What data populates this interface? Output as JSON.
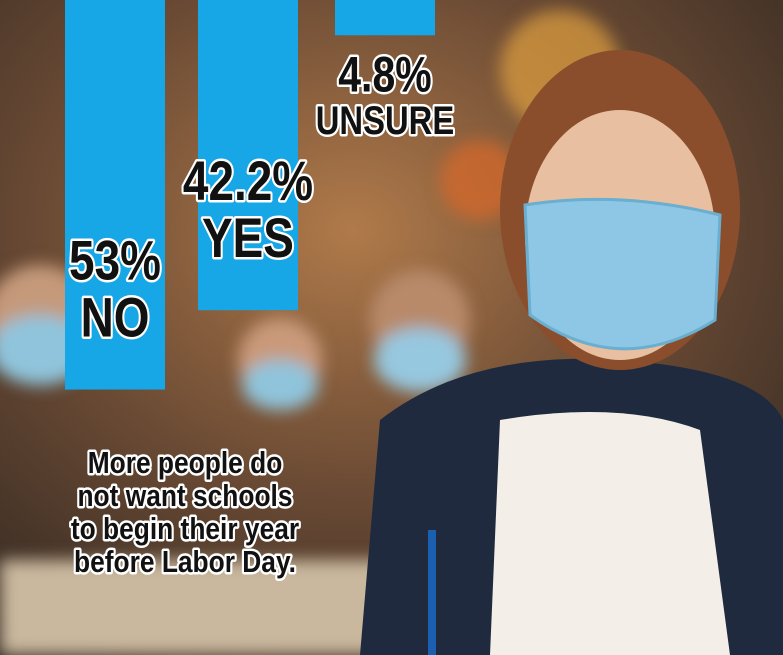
{
  "chart_data": {
    "type": "bar",
    "categories": [
      "NO",
      "YES",
      "UNSURE"
    ],
    "values": [
      53,
      42.2,
      4.8
    ],
    "value_labels": [
      "53%",
      "42.2%",
      "4.8%"
    ],
    "color": "#17a6e6",
    "caption": [
      "More people do",
      "not want schools",
      "to begin their year",
      "before Labor Day."
    ]
  }
}
